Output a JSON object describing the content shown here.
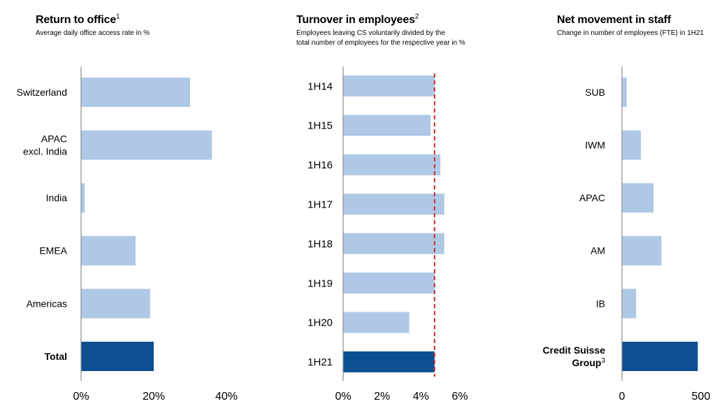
{
  "colors": {
    "bar": "#aec8e6",
    "highlight": "#0c4f92",
    "axis": "#8c8c8c",
    "reference_line": "#cc2a2f"
  },
  "panels": [
    {
      "title": "Return to office",
      "title_sup": "1",
      "subtitle_lines": [
        "Average daily office access rate in %"
      ]
    },
    {
      "title": "Turnover in employees",
      "title_sup": "2",
      "subtitle_lines": [
        "Employees leaving CS voluntarily divided by the",
        "total number of employees for the respective year in %"
      ]
    },
    {
      "title": "Net movement in staff",
      "title_sup": "",
      "subtitle_lines": [
        "Change in number of employees (FTE) in 1H21"
      ]
    }
  ],
  "chart_data": [
    {
      "type": "bar",
      "orientation": "horizontal",
      "title": "Return to office",
      "subtitle": "Average daily office access rate in %",
      "categories": [
        {
          "lines": [
            "Switzerland"
          ],
          "sup": ""
        },
        {
          "lines": [
            "APAC",
            "excl. India"
          ],
          "sup": ""
        },
        {
          "lines": [
            "India"
          ],
          "sup": ""
        },
        {
          "lines": [
            "EMEA"
          ],
          "sup": ""
        },
        {
          "lines": [
            "Americas"
          ],
          "sup": ""
        },
        {
          "lines": [
            "Total"
          ],
          "sup": "",
          "bold": true
        }
      ],
      "values": [
        30,
        36,
        1,
        15,
        19,
        20
      ],
      "highlight_index": 5,
      "xlim": [
        0,
        40
      ],
      "ticks": [
        {
          "value": 0,
          "label": "0%"
        },
        {
          "value": 20,
          "label": "20%"
        },
        {
          "value": 40,
          "label": "40%"
        }
      ],
      "grid": false
    },
    {
      "type": "bar",
      "orientation": "horizontal",
      "title": "Turnover in employees",
      "subtitle": "Employees leaving CS voluntarily divided by the total number of employees for the respective year in %",
      "categories": [
        {
          "lines": [
            "1H14"
          ],
          "sup": ""
        },
        {
          "lines": [
            "1H15"
          ],
          "sup": ""
        },
        {
          "lines": [
            "1H16"
          ],
          "sup": ""
        },
        {
          "lines": [
            "1H17"
          ],
          "sup": ""
        },
        {
          "lines": [
            "1H18"
          ],
          "sup": ""
        },
        {
          "lines": [
            "1H19"
          ],
          "sup": ""
        },
        {
          "lines": [
            "1H20"
          ],
          "sup": ""
        },
        {
          "lines": [
            "1H21"
          ],
          "sup": ""
        }
      ],
      "values": [
        4.7,
        4.5,
        5.0,
        5.2,
        5.2,
        4.7,
        3.4,
        4.7
      ],
      "highlight_index": 7,
      "reference_line": 4.7,
      "xlim": [
        0,
        6
      ],
      "ticks": [
        {
          "value": 0,
          "label": "0%"
        },
        {
          "value": 2,
          "label": "2%"
        },
        {
          "value": 4,
          "label": "4%"
        },
        {
          "value": 6,
          "label": "6%"
        }
      ],
      "grid": false
    },
    {
      "type": "bar",
      "orientation": "horizontal",
      "title": "Net movement in staff",
      "subtitle": "Change in number of employees (FTE) in 1H21",
      "categories": [
        {
          "lines": [
            "SUB"
          ],
          "sup": ""
        },
        {
          "lines": [
            "IWM"
          ],
          "sup": ""
        },
        {
          "lines": [
            "APAC"
          ],
          "sup": ""
        },
        {
          "lines": [
            "AM"
          ],
          "sup": ""
        },
        {
          "lines": [
            "IB"
          ],
          "sup": ""
        },
        {
          "lines": [
            "Credit Suisse",
            "Group"
          ],
          "sup": "3",
          "bold": true
        }
      ],
      "values": [
        30,
        120,
        200,
        250,
        90,
        480
      ],
      "highlight_index": 5,
      "xlim": [
        0,
        500
      ],
      "ticks": [
        {
          "value": 0,
          "label": "0"
        },
        {
          "value": 500,
          "label": "500"
        }
      ],
      "grid": false
    }
  ]
}
